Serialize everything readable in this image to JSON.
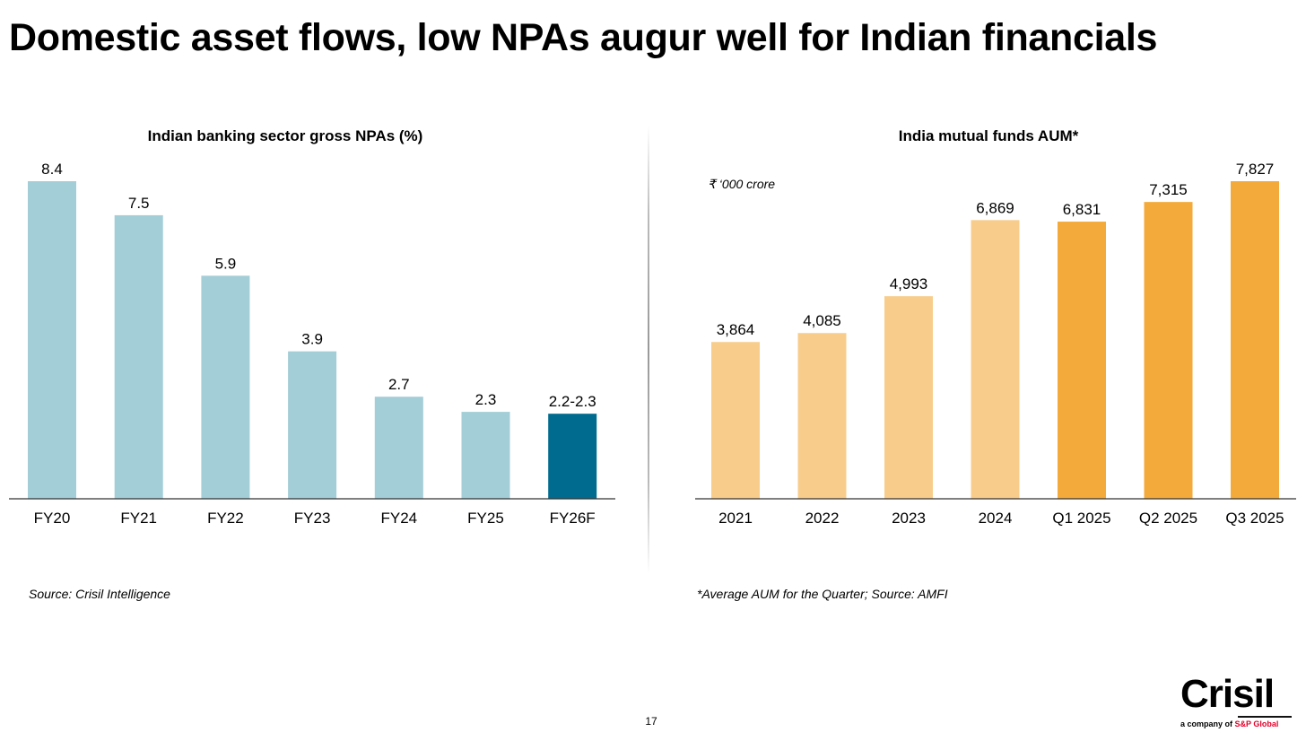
{
  "title": "Domestic asset flows, low NPAs augur well for Indian financials",
  "page_number": "17",
  "logo": {
    "name": "Crisil",
    "tagline": "a company of",
    "parent": "S&P Global"
  },
  "colors": {
    "npa_actual": "#a3ced8",
    "npa_forecast": "#006b8f",
    "aum_annual": "#f8cd8c",
    "aum_quarter": "#f4aa3a"
  },
  "chart_data": [
    {
      "type": "bar",
      "title": "Indian banking sector gross NPAs (%)",
      "categories": [
        "FY20",
        "FY21",
        "FY22",
        "FY23",
        "FY24",
        "FY25",
        "FY26F"
      ],
      "values": [
        8.4,
        7.5,
        5.9,
        3.9,
        2.7,
        2.3,
        2.25
      ],
      "data_labels": [
        "8.4",
        "7.5",
        "5.9",
        "3.9",
        "2.7",
        "2.3",
        "2.2-2.3"
      ],
      "bar_colors": [
        "#a3ced8",
        "#a3ced8",
        "#a3ced8",
        "#a3ced8",
        "#a3ced8",
        "#a3ced8",
        "#006b8f"
      ],
      "ylim": [
        0,
        8.4
      ],
      "note": "Source: Crisil Intelligence"
    },
    {
      "type": "bar",
      "title": "India mutual funds AUM*",
      "unit": "₹ ‘000 crore",
      "categories": [
        "2021",
        "2022",
        "2023",
        "2024",
        "Q1 2025",
        "Q2 2025",
        "Q3 2025"
      ],
      "values": [
        3864,
        4085,
        4993,
        6869,
        6831,
        7315,
        7827
      ],
      "data_labels": [
        "3,864",
        "4,085",
        "4,993",
        "6,869",
        "6,831",
        "7,315",
        "7,827"
      ],
      "bar_colors": [
        "#f8cd8c",
        "#f8cd8c",
        "#f8cd8c",
        "#f8cd8c",
        "#f4aa3a",
        "#f4aa3a",
        "#f4aa3a"
      ],
      "ylim": [
        0,
        7827
      ],
      "note": "*Average AUM for the Quarter; Source: AMFI"
    }
  ]
}
